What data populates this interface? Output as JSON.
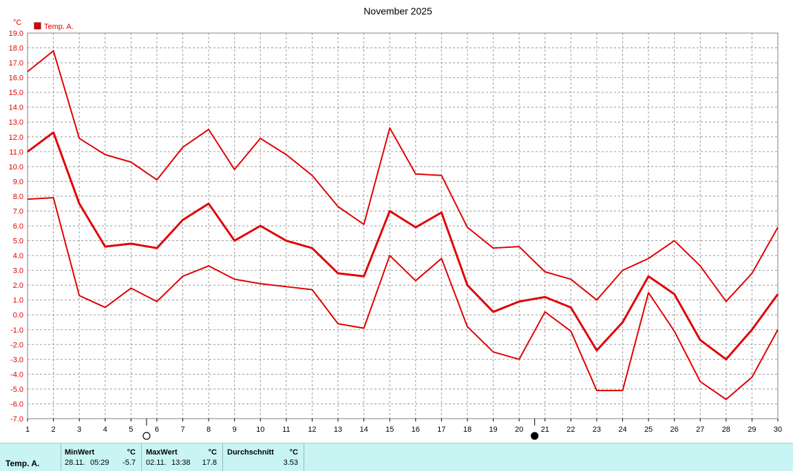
{
  "chart_data": {
    "type": "line",
    "title": "November 2025",
    "ylabel": "°C",
    "ylim": [
      -7.0,
      19.0
    ],
    "xlim": [
      1,
      30
    ],
    "grid": true,
    "legend_placement": "top-left",
    "x": [
      1,
      2,
      3,
      4,
      5,
      6,
      7,
      8,
      9,
      10,
      11,
      12,
      13,
      14,
      15,
      16,
      17,
      18,
      19,
      20,
      21,
      22,
      23,
      24,
      25,
      26,
      27,
      28,
      29,
      30
    ],
    "x_tick_labels": [
      "1",
      "2",
      "3",
      "4",
      "5",
      "6",
      "7",
      "8",
      "9",
      "10",
      "11",
      "12",
      "13",
      "14",
      "15",
      "16",
      "17",
      "18",
      "19",
      "20",
      "21",
      "22",
      "23",
      "24",
      "25",
      "26",
      "27",
      "28",
      "29",
      "30"
    ],
    "y_tick_labels": [
      "19.0",
      "18.0",
      "17.0",
      "16.0",
      "15.0",
      "14.0",
      "13.0",
      "12.0",
      "11.0",
      "10.0",
      "9.0",
      "8.0",
      "7.0",
      "6.0",
      "5.0",
      "4.0",
      "3.0",
      "2.0",
      "1.0",
      "0.0",
      "-1.0",
      "-2.0",
      "-3.0",
      "-4.0",
      "-5.0",
      "-6.0",
      "-7.0"
    ],
    "legend": [
      "Temp. A."
    ],
    "series": [
      {
        "name": "Temp. A.",
        "role": "max",
        "color": "#e00000",
        "values": [
          16.4,
          17.8,
          11.9,
          10.8,
          10.3,
          9.1,
          11.3,
          12.5,
          9.8,
          11.9,
          10.8,
          9.4,
          7.3,
          6.1,
          12.6,
          9.5,
          9.4,
          5.9,
          4.5,
          4.6,
          2.9,
          2.4,
          1.0,
          3.0,
          3.8,
          5.0,
          3.3,
          0.9,
          2.8,
          5.9
        ]
      },
      {
        "name": "Temp. A.",
        "role": "avg",
        "color": "#e00000",
        "values": [
          11.0,
          12.3,
          7.5,
          4.6,
          4.8,
          4.5,
          6.4,
          7.5,
          5.0,
          6.0,
          5.0,
          4.5,
          2.8,
          2.6,
          7.0,
          5.9,
          6.9,
          2.0,
          0.2,
          0.9,
          1.2,
          0.5,
          -2.4,
          -0.5,
          2.6,
          1.4,
          -1.7,
          -3.0,
          -1.0,
          1.4
        ]
      },
      {
        "name": "Temp. A.",
        "role": "min",
        "color": "#e00000",
        "values": [
          7.8,
          7.9,
          1.3,
          0.5,
          1.8,
          0.9,
          2.6,
          3.3,
          2.4,
          2.1,
          1.9,
          1.7,
          -0.6,
          -0.9,
          4.0,
          2.3,
          3.8,
          -0.8,
          -2.5,
          -3.0,
          0.2,
          -1.1,
          -5.1,
          -5.1,
          1.5,
          -1.1,
          -4.5,
          -5.7,
          -4.2,
          -1.0
        ]
      }
    ],
    "moon_markers": [
      {
        "x": 5.6,
        "phase": "full-moon"
      },
      {
        "x": 20.6,
        "phase": "new-moon"
      }
    ]
  },
  "stats_panel": {
    "row_label": "Temp. A.",
    "min": {
      "header": "MinWert",
      "unit": "°C",
      "date": "28.11.",
      "time": "05:29",
      "value": "-5.7"
    },
    "max": {
      "header": "MaxWert",
      "unit": "°C",
      "date": "02.11.",
      "time": "13:38",
      "value": "17.8"
    },
    "avg": {
      "header": "Durchschnitt",
      "unit": "°C",
      "value": "3.53"
    }
  },
  "colors": {
    "series": "#e00000",
    "stats_background": "#c8f4f4",
    "grid": "#999999"
  }
}
